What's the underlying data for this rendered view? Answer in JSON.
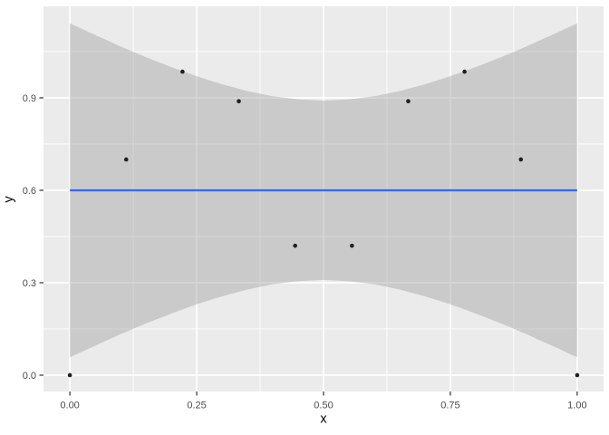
{
  "chart_data": {
    "type": "scatter",
    "title": "",
    "xlabel": "x",
    "ylabel": "y",
    "grid": "on",
    "x_axis": {
      "range": [
        -0.052,
        1.052
      ],
      "major_breaks": [
        0,
        0.25,
        0.5,
        0.75,
        1.0
      ],
      "minor_breaks": [
        0.125,
        0.375,
        0.625,
        0.875
      ],
      "tick_labels": [
        "0.00",
        "0.25",
        "0.50",
        "0.75",
        "1.00"
      ]
    },
    "y_axis": {
      "range": [
        -0.053,
        1.197
      ],
      "major_breaks": [
        0,
        0.3,
        0.6,
        0.9
      ],
      "minor_breaks": [
        0.15,
        0.45,
        0.75,
        1.05
      ],
      "tick_labels": [
        "0.0",
        "0.3",
        "0.6",
        "0.9"
      ]
    },
    "points": [
      [
        0.0,
        0.0
      ],
      [
        0.111,
        0.7
      ],
      [
        0.222,
        0.985
      ],
      [
        0.333,
        0.889
      ],
      [
        0.444,
        0.42
      ],
      [
        0.556,
        0.42
      ],
      [
        0.667,
        0.889
      ],
      [
        0.778,
        0.985
      ],
      [
        0.889,
        0.7
      ],
      [
        1.0,
        0.0
      ]
    ],
    "smooth_line": {
      "y": 0.6,
      "x_start": 0.0,
      "x_end": 1.0
    },
    "confidence_band": [
      [
        0.0,
        0.058,
        1.142
      ],
      [
        0.05,
        0.096,
        1.104
      ],
      [
        0.1,
        0.133,
        1.067
      ],
      [
        0.15,
        0.168,
        1.032
      ],
      [
        0.2,
        0.2,
        1.0
      ],
      [
        0.25,
        0.23,
        0.97
      ],
      [
        0.3,
        0.256,
        0.944
      ],
      [
        0.35,
        0.278,
        0.922
      ],
      [
        0.4,
        0.295,
        0.905
      ],
      [
        0.45,
        0.305,
        0.895
      ],
      [
        0.5,
        0.309,
        0.891
      ],
      [
        0.55,
        0.305,
        0.895
      ],
      [
        0.6,
        0.295,
        0.905
      ],
      [
        0.65,
        0.278,
        0.922
      ],
      [
        0.7,
        0.256,
        0.944
      ],
      [
        0.75,
        0.23,
        0.97
      ],
      [
        0.8,
        0.2,
        1.0
      ],
      [
        0.85,
        0.168,
        1.032
      ],
      [
        0.9,
        0.133,
        1.067
      ],
      [
        0.95,
        0.096,
        1.104
      ],
      [
        1.0,
        0.058,
        1.142
      ]
    ],
    "colors": {
      "outer_background": "#FFFFFF",
      "panel_background": "#EBEBEB",
      "gridline": "#FFFFFF",
      "band_fill": "#999999",
      "band_opacity": 0.4,
      "smooth_line": "#3366FF",
      "point": "#1F1F1F",
      "tick_mark": "#333333",
      "tick_label": "#4D4D4D",
      "axis_title": "#000000"
    }
  }
}
